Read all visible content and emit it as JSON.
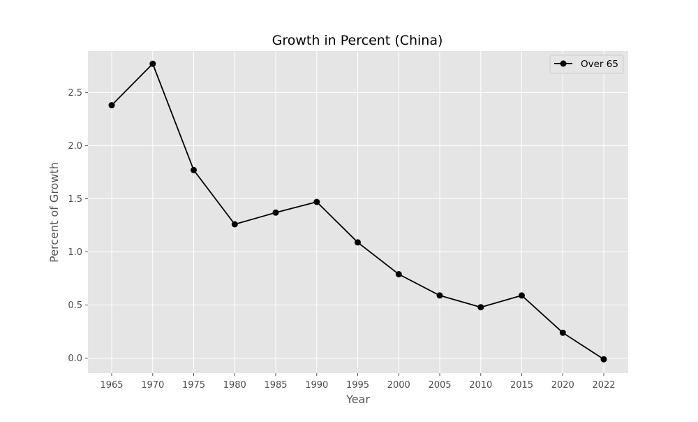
{
  "chart_data": {
    "type": "line",
    "title": "Growth in Percent (China)",
    "xlabel": "Year",
    "ylabel": "Percent of Growth",
    "x_ticks": [
      "1965",
      "1970",
      "1975",
      "1980",
      "1985",
      "1990",
      "1995",
      "2000",
      "2005",
      "2010",
      "2015",
      "2020",
      "2022"
    ],
    "y_ticks": [
      "0.0",
      "0.5",
      "1.0",
      "1.5",
      "2.0",
      "2.5"
    ],
    "ylim": [
      -0.14,
      2.89
    ],
    "series": [
      {
        "name": "Over 65",
        "color": "#000000",
        "marker": "circle",
        "x": [
          "1965",
          "1970",
          "1975",
          "1980",
          "1985",
          "1990",
          "1995",
          "2000",
          "2005",
          "2010",
          "2015",
          "2020",
          "2022"
        ],
        "values": [
          2.38,
          2.77,
          1.77,
          1.26,
          1.37,
          1.47,
          1.09,
          0.79,
          0.59,
          0.48,
          0.59,
          0.24,
          -0.01
        ]
      }
    ],
    "legend": {
      "placement": "top-right"
    },
    "grid": true,
    "style": {
      "plot_background": "#e5e5e5",
      "grid_color": "#ffffff"
    }
  }
}
